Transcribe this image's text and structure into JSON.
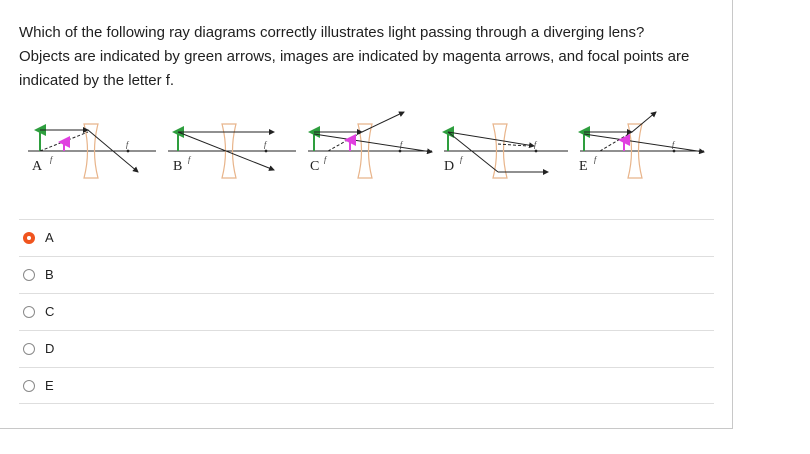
{
  "question": {
    "line1": "Which of the following ray diagrams correctly illustrates light passing through a diverging lens?",
    "line2": "Objects are indicated by green arrows, images are indicated by magenta arrows, and focal points are",
    "line3": "indicated by the letter f."
  },
  "diagrams": {
    "labels": [
      "A",
      "B",
      "C",
      "D",
      "E"
    ],
    "focal_mark": "f",
    "colors": {
      "object": "#2e9e3e",
      "image": "#e040e0",
      "lens": "#e8b48a",
      "ray": "#222222"
    }
  },
  "options": [
    {
      "label": "A",
      "selected": true
    },
    {
      "label": "B",
      "selected": false
    },
    {
      "label": "C",
      "selected": false
    },
    {
      "label": "D",
      "selected": false
    },
    {
      "label": "E",
      "selected": false
    }
  ],
  "colors": {
    "selected_radio": "#f0541e"
  }
}
